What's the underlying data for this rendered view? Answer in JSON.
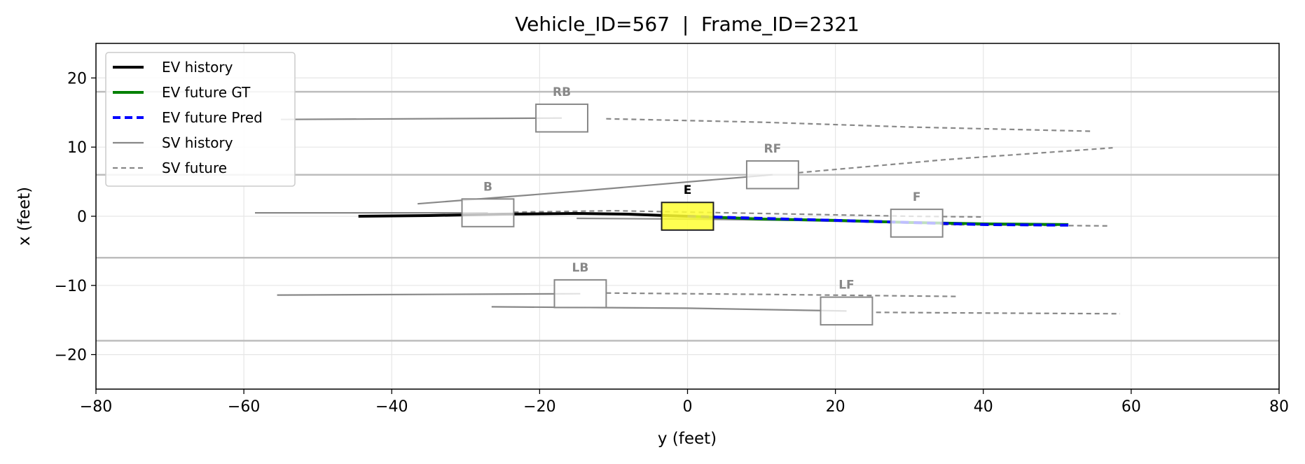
{
  "chart_data": {
    "type": "line",
    "title": "Vehicle_ID=567  |  Frame_ID=2321",
    "xlabel": "y (feet)",
    "ylabel": "x (feet)",
    "xlim": [
      -80,
      80
    ],
    "ylim": [
      -25,
      25
    ],
    "xticks": [
      -80,
      -60,
      -40,
      -20,
      0,
      20,
      40,
      60,
      80
    ],
    "yticks": [
      -20,
      -10,
      0,
      10,
      20
    ],
    "grid": true,
    "lane_lines": [
      18,
      6,
      -6,
      -18
    ],
    "legend": {
      "placement": "upper-left",
      "entries": [
        {
          "label": "EV history",
          "color": "#000000",
          "style": "solid-thick"
        },
        {
          "label": "EV future GT",
          "color": "#008000",
          "style": "solid-thick"
        },
        {
          "label": "EV future Pred",
          "color": "#0000ff",
          "style": "dashed-thick"
        },
        {
          "label": "SV history",
          "color": "#888888",
          "style": "solid"
        },
        {
          "label": "SV future",
          "color": "#888888",
          "style": "dashed"
        }
      ]
    },
    "ego": {
      "label": "E",
      "center": [
        0,
        0
      ],
      "length": 7,
      "width": 4,
      "fill": "#ffff33",
      "history": [
        [
          -44.5,
          0.0
        ],
        [
          -35,
          0.1
        ],
        [
          -25,
          0.3
        ],
        [
          -15,
          0.4
        ],
        [
          -8,
          0.3
        ],
        [
          -3,
          0.1
        ],
        [
          0,
          0
        ]
      ],
      "future_gt": [
        [
          0,
          0
        ],
        [
          10,
          -0.4
        ],
        [
          20,
          -0.6
        ],
        [
          30,
          -0.9
        ],
        [
          40,
          -1.1
        ],
        [
          51.5,
          -1.2
        ]
      ],
      "future_pred": [
        [
          0,
          0
        ],
        [
          10,
          -0.3
        ],
        [
          20,
          -0.6
        ],
        [
          30,
          -0.9
        ],
        [
          40,
          -1.2
        ],
        [
          51.5,
          -1.3
        ]
      ]
    },
    "surrounding_vehicles": [
      {
        "label": "RB",
        "center": [
          -17,
          14.2
        ],
        "length": 7,
        "width": 4,
        "history": [
          [
            -55,
            14.0
          ],
          [
            -17,
            14.2
          ]
        ],
        "future": [
          [
            -11,
            14.1
          ],
          [
            10,
            13.6
          ],
          [
            30,
            12.9
          ],
          [
            54.5,
            12.3
          ]
        ]
      },
      {
        "label": "RF",
        "center": [
          11.5,
          6
        ],
        "length": 7,
        "width": 4,
        "history": [
          [
            -36.5,
            1.8
          ],
          [
            -15,
            3.6
          ],
          [
            11.5,
            6.0
          ]
        ],
        "future": [
          [
            15,
            6.3
          ],
          [
            35,
            8.2
          ],
          [
            57.5,
            9.9
          ]
        ]
      },
      {
        "label": "B",
        "center": [
          -27,
          0.5
        ],
        "length": 7,
        "width": 4,
        "history": [
          [
            -58.5,
            0.5
          ],
          [
            -27,
            0.5
          ]
        ],
        "future": [
          [
            -23.5,
            0.6
          ],
          [
            -10,
            0.8
          ],
          [
            10,
            0.4
          ],
          [
            30,
            0.0
          ],
          [
            40,
            -0.1
          ]
        ]
      },
      {
        "label": "F",
        "center": [
          31,
          -1
        ],
        "length": 7,
        "width": 4,
        "history": [
          [
            -15,
            -0.3
          ],
          [
            0,
            -0.4
          ],
          [
            15,
            -0.6
          ],
          [
            31,
            -1.0
          ]
        ],
        "future": [
          [
            34.5,
            -1.2
          ],
          [
            45,
            -1.3
          ],
          [
            57,
            -1.4
          ]
        ]
      },
      {
        "label": "LB",
        "center": [
          -14.5,
          -11.2
        ],
        "length": 7,
        "width": 4,
        "history": [
          [
            -55.5,
            -11.4
          ],
          [
            -14.5,
            -11.2
          ]
        ],
        "future": [
          [
            -11,
            -11.1
          ],
          [
            10,
            -11.3
          ],
          [
            36.5,
            -11.6
          ]
        ]
      },
      {
        "label": "LF",
        "center": [
          21.5,
          -13.7
        ],
        "length": 7,
        "width": 4,
        "history": [
          [
            -26.5,
            -13.1
          ],
          [
            0,
            -13.3
          ],
          [
            21.5,
            -13.7
          ]
        ],
        "future": [
          [
            25.5,
            -13.9
          ],
          [
            40,
            -14.0
          ],
          [
            58.5,
            -14.1
          ]
        ]
      }
    ]
  }
}
